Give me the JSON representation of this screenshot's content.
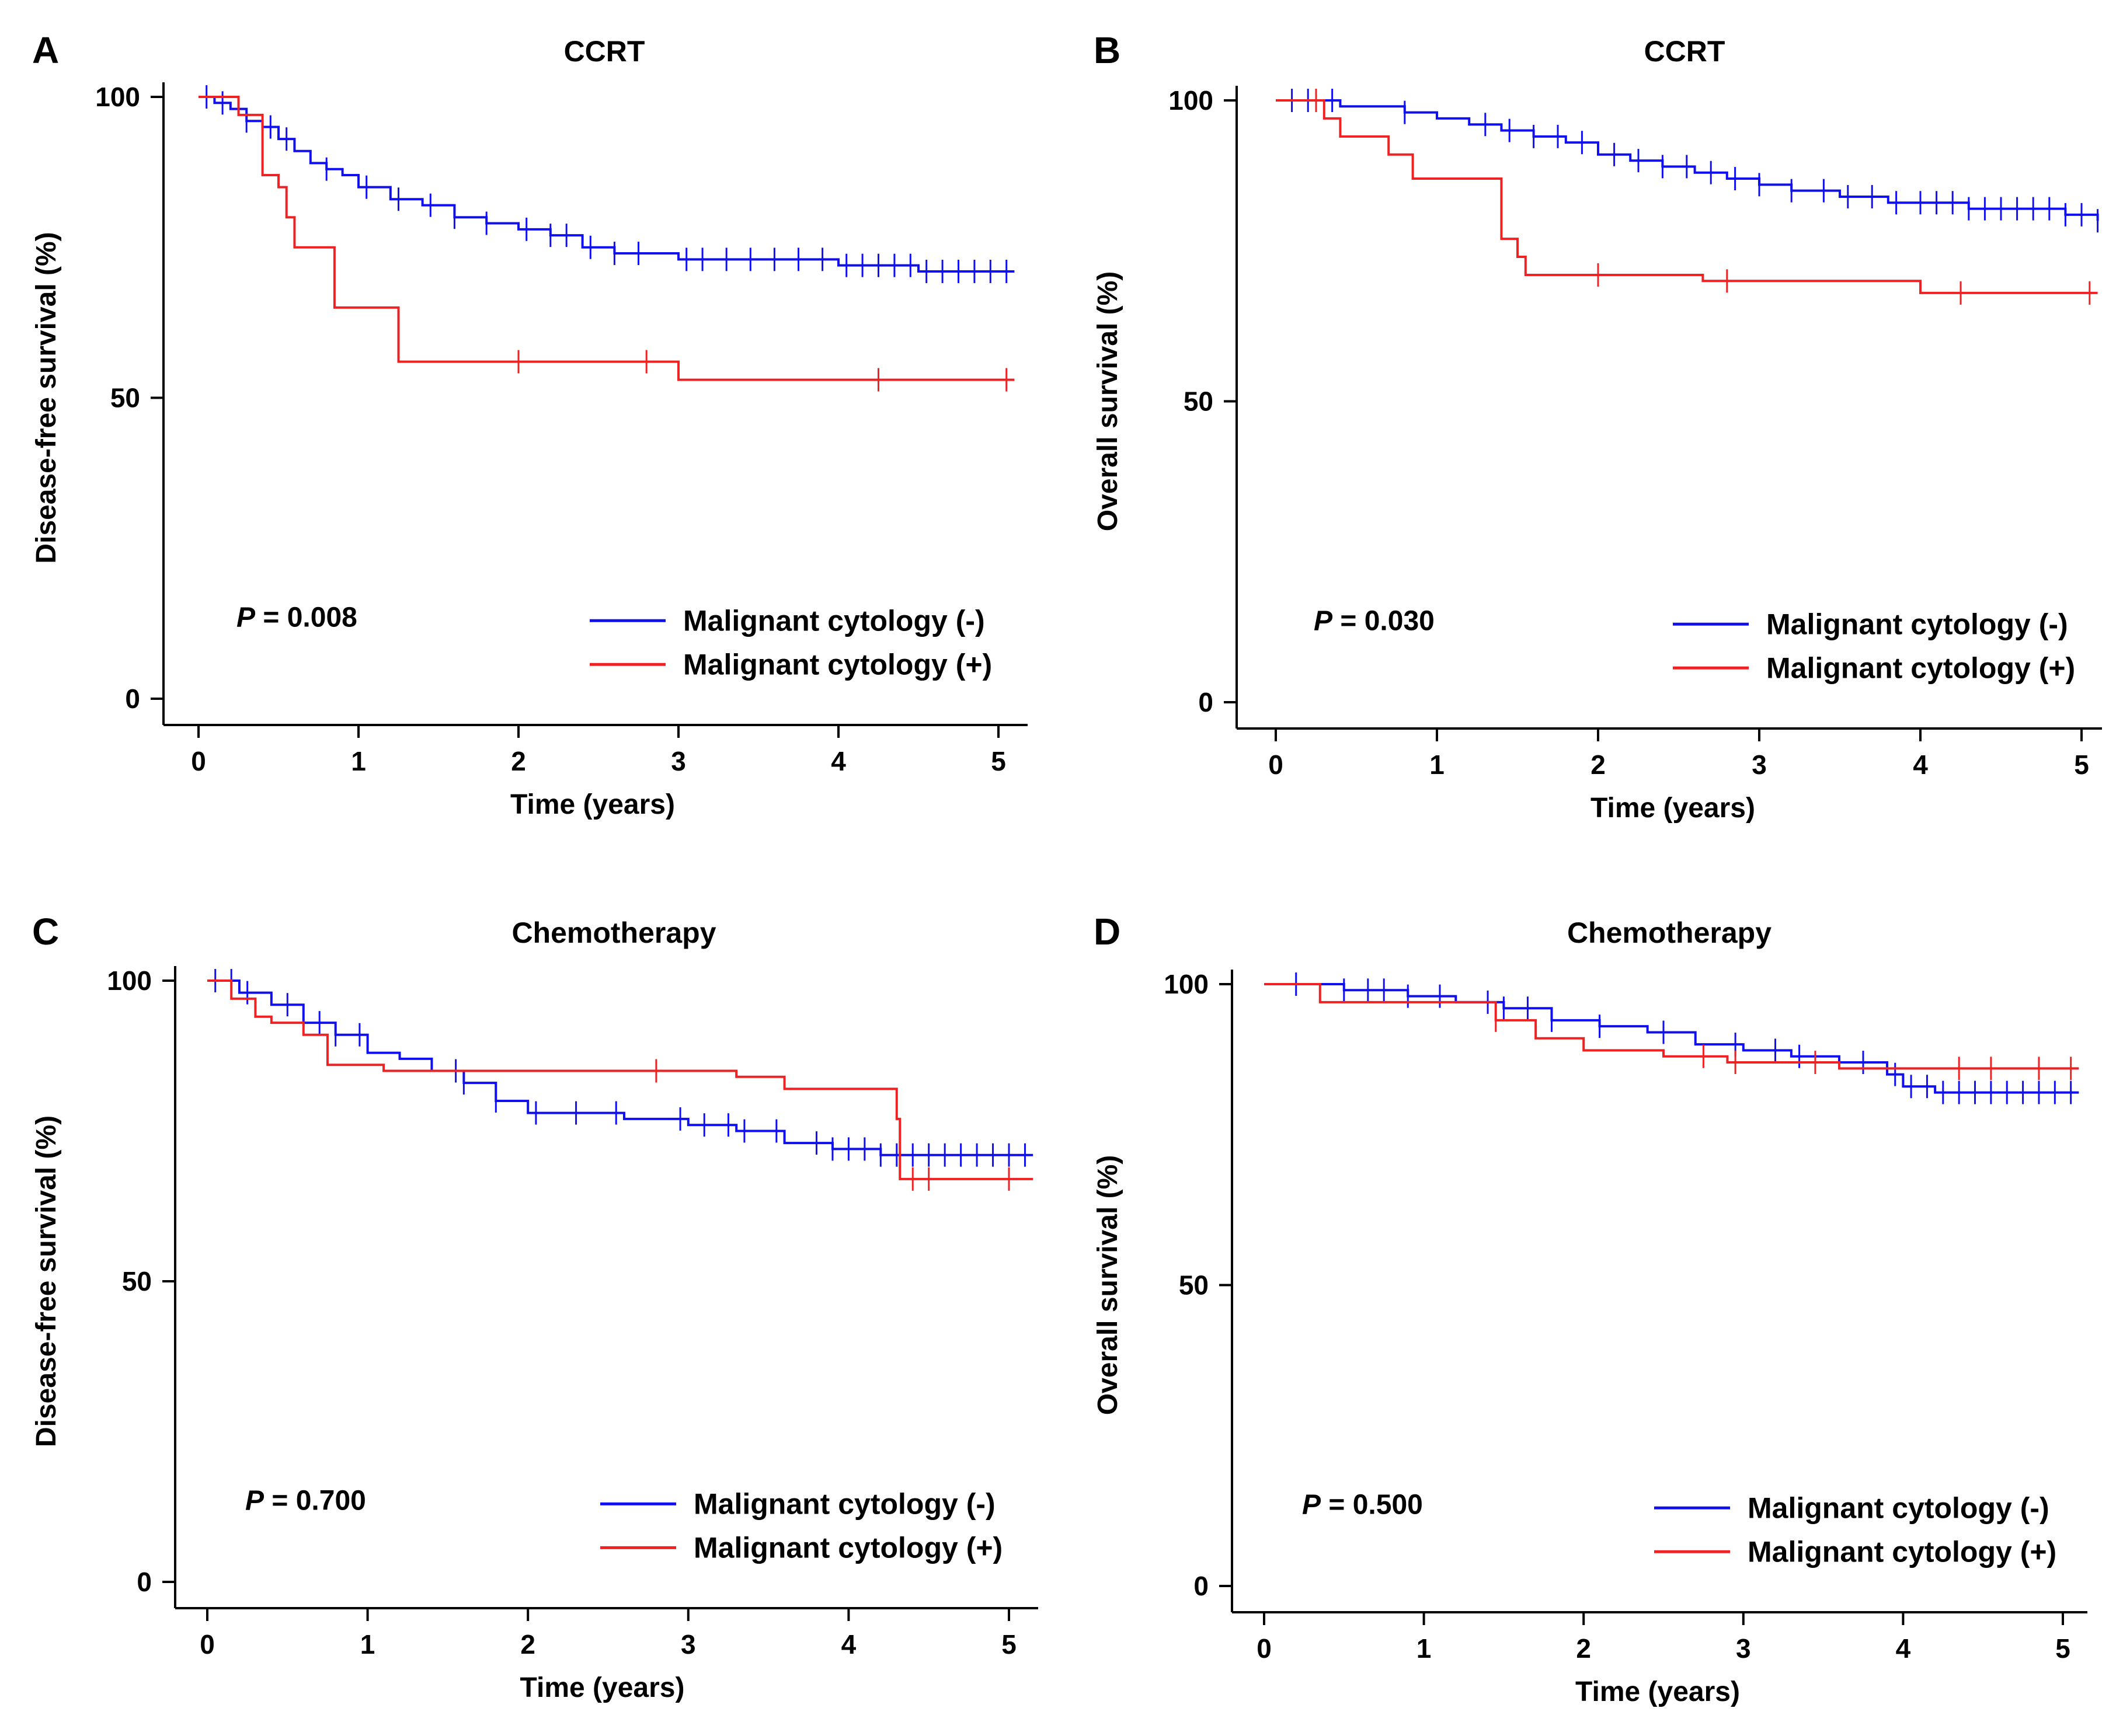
{
  "figure": {
    "series_colors": {
      "negative": "#1010ee",
      "positive": "#ee2222"
    }
  },
  "chart_data": [
    {
      "type": "line",
      "panel": "A",
      "title": "CCRT",
      "xlabel": "Time (years)",
      "ylabel": "Disease-free survival (%)",
      "xlim": [
        0,
        5.15
      ],
      "ylim": [
        0,
        100
      ],
      "xticks": [
        "0",
        "1",
        "2",
        "3",
        "4",
        "5"
      ],
      "yticks": [
        "0",
        "50",
        "100"
      ],
      "p_prefix": "P",
      "p_value": " = 0.008",
      "legend": [
        "Malignant cytology (-)",
        "Malignant cytology (+)"
      ],
      "series": [
        {
          "name": "Malignant cytology (-)",
          "color": "#1010ee",
          "x": [
            0,
            0.1,
            0.2,
            0.3,
            0.4,
            0.5,
            0.6,
            0.7,
            0.8,
            0.9,
            1.0,
            1.2,
            1.4,
            1.6,
            1.8,
            2.0,
            2.2,
            2.4,
            2.6,
            2.8,
            3.0,
            3.5,
            4.0,
            4.5,
            5.0,
            5.1
          ],
          "values": [
            100,
            99,
            98,
            96,
            95,
            93,
            91,
            89,
            88,
            87,
            85,
            83,
            82,
            80,
            79,
            78,
            77,
            75,
            74,
            74,
            73,
            73,
            72,
            71,
            71,
            71
          ],
          "censors": [
            0.05,
            0.15,
            0.3,
            0.45,
            0.55,
            0.8,
            1.05,
            1.25,
            1.45,
            1.6,
            1.8,
            2.05,
            2.2,
            2.3,
            2.45,
            2.6,
            2.75,
            3.05,
            3.15,
            3.3,
            3.45,
            3.6,
            3.75,
            3.9,
            4.05,
            4.15,
            4.25,
            4.35,
            4.45,
            4.55,
            4.65,
            4.75,
            4.85,
            4.95,
            5.05
          ]
        },
        {
          "name": "Malignant cytology (+)",
          "color": "#ee2222",
          "x": [
            0,
            0.25,
            0.4,
            0.5,
            0.55,
            0.6,
            0.8,
            0.85,
            1.25,
            3.0,
            5.1
          ],
          "values": [
            100,
            97,
            87,
            85,
            80,
            75,
            75,
            65,
            56,
            53,
            53
          ],
          "censors": [
            2.0,
            2.8,
            4.25,
            5.05
          ]
        }
      ]
    },
    {
      "type": "line",
      "panel": "B",
      "title": "CCRT",
      "xlabel": "Time (years)",
      "ylabel": "Overall survival (%)",
      "xlim": [
        0,
        5.15
      ],
      "ylim": [
        0,
        100
      ],
      "xticks": [
        "0",
        "1",
        "2",
        "3",
        "4",
        "5"
      ],
      "yticks": [
        "0",
        "50",
        "100"
      ],
      "p_prefix": "P",
      "p_value": " = 0.030",
      "legend": [
        "Malignant cytology (-)",
        "Malignant cytology (+)"
      ],
      "series": [
        {
          "name": "Malignant cytology (-)",
          "color": "#1010ee",
          "x": [
            0,
            0.4,
            0.8,
            1.0,
            1.2,
            1.4,
            1.6,
            1.8,
            2.0,
            2.2,
            2.4,
            2.6,
            2.8,
            3.0,
            3.2,
            3.5,
            3.8,
            4.0,
            4.3,
            4.6,
            4.9,
            5.1
          ],
          "values": [
            100,
            99,
            98,
            97,
            96,
            95,
            94,
            93,
            91,
            90,
            89,
            88,
            87,
            86,
            85,
            84,
            83,
            83,
            82,
            82,
            81,
            80
          ],
          "censors": [
            0.1,
            0.2,
            0.35,
            0.8,
            1.3,
            1.45,
            1.6,
            1.75,
            1.9,
            2.1,
            2.25,
            2.4,
            2.55,
            2.7,
            2.85,
            3.0,
            3.2,
            3.4,
            3.55,
            3.7,
            3.85,
            4.0,
            4.1,
            4.2,
            4.3,
            4.4,
            4.5,
            4.6,
            4.7,
            4.8,
            4.9,
            5.0,
            5.1
          ]
        },
        {
          "name": "Malignant cytology (+)",
          "color": "#ee2222",
          "x": [
            0,
            0.3,
            0.4,
            0.7,
            0.85,
            1.35,
            1.4,
            1.5,
            1.55,
            2.65,
            4.0,
            5.1
          ],
          "values": [
            100,
            97,
            94,
            91,
            87,
            87,
            77,
            74,
            71,
            70,
            68,
            68
          ],
          "censors": [
            0.25,
            2.0,
            2.8,
            4.25,
            5.05
          ]
        }
      ]
    },
    {
      "type": "line",
      "panel": "C",
      "title": "Chemotherapy",
      "xlabel": "Time (years)",
      "ylabel": "Disease-free survival (%)",
      "xlim": [
        0,
        5.15
      ],
      "ylim": [
        0,
        100
      ],
      "xticks": [
        "0",
        "1",
        "2",
        "3",
        "4",
        "5"
      ],
      "yticks": [
        "0",
        "50",
        "100"
      ],
      "p_prefix": "P",
      "p_value": " = 0.700",
      "legend": [
        "Malignant cytology (-)",
        "Malignant cytology (+)"
      ],
      "series": [
        {
          "name": "Malignant cytology (-)",
          "color": "#1010ee",
          "x": [
            0,
            0.2,
            0.4,
            0.6,
            0.8,
            1.0,
            1.2,
            1.4,
            1.6,
            1.8,
            2.0,
            2.3,
            2.6,
            3.0,
            3.3,
            3.6,
            3.9,
            4.2,
            4.5,
            4.8,
            5.15
          ],
          "values": [
            100,
            98,
            96,
            93,
            91,
            88,
            87,
            85,
            83,
            80,
            78,
            78,
            77,
            76,
            75,
            73,
            72,
            71,
            71,
            71,
            71
          ],
          "censors": [
            0.05,
            0.15,
            0.25,
            0.5,
            0.6,
            0.7,
            0.8,
            0.95,
            1.55,
            1.6,
            1.8,
            2.05,
            2.3,
            2.55,
            2.95,
            3.1,
            3.25,
            3.35,
            3.55,
            3.8,
            3.9,
            4.0,
            4.1,
            4.2,
            4.3,
            4.4,
            4.5,
            4.6,
            4.7,
            4.8,
            4.9,
            5.0,
            5.1
          ]
        },
        {
          "name": "Malignant cytology (+)",
          "color": "#ee2222",
          "x": [
            0,
            0.15,
            0.3,
            0.4,
            0.6,
            0.75,
            1.1,
            2.6,
            3.3,
            3.6,
            4.3,
            4.32,
            5.15
          ],
          "values": [
            100,
            97,
            94,
            93,
            91,
            86,
            85,
            85,
            84,
            82,
            77,
            67,
            67
          ],
          "censors": [
            2.8,
            4.4,
            4.5,
            5.0
          ]
        }
      ]
    },
    {
      "type": "line",
      "panel": "D",
      "title": "Chemotherapy",
      "xlabel": "Time (years)",
      "ylabel": "Overall survival (%)",
      "xlim": [
        0,
        5.15
      ],
      "ylim": [
        0,
        100
      ],
      "xticks": [
        "0",
        "1",
        "2",
        "3",
        "4",
        "5"
      ],
      "yticks": [
        "0",
        "50",
        "100"
      ],
      "p_prefix": "P",
      "p_value": " = 0.500",
      "legend": [
        "Malignant cytology (-)",
        "Malignant cytology (+)"
      ],
      "series": [
        {
          "name": "Malignant cytology (-)",
          "color": "#1010ee",
          "x": [
            0,
            0.5,
            0.9,
            1.2,
            1.5,
            1.8,
            2.1,
            2.4,
            2.7,
            3.0,
            3.3,
            3.6,
            3.9,
            4.0,
            4.2,
            5.1
          ],
          "values": [
            100,
            99,
            98,
            97,
            96,
            94,
            93,
            92,
            90,
            89,
            88,
            87,
            85,
            83,
            82,
            82
          ],
          "censors": [
            0.2,
            0.5,
            0.65,
            0.75,
            0.9,
            1.1,
            1.4,
            1.5,
            1.65,
            1.8,
            2.1,
            2.5,
            2.95,
            3.2,
            3.35,
            3.75,
            3.95,
            4.05,
            4.15,
            4.25,
            4.35,
            4.45,
            4.55,
            4.65,
            4.75,
            4.85,
            4.95,
            5.05
          ]
        },
        {
          "name": "Malignant cytology (+)",
          "color": "#ee2222",
          "x": [
            0,
            0.35,
            1.3,
            1.45,
            1.7,
            2.0,
            2.5,
            2.9,
            3.6,
            3.7,
            5.1
          ],
          "values": [
            100,
            97,
            97,
            94,
            91,
            89,
            88,
            87,
            86,
            86,
            86
          ],
          "censors": [
            1.45,
            2.75,
            2.95,
            3.45,
            4.35,
            4.55,
            4.85,
            5.05
          ]
        }
      ]
    }
  ]
}
